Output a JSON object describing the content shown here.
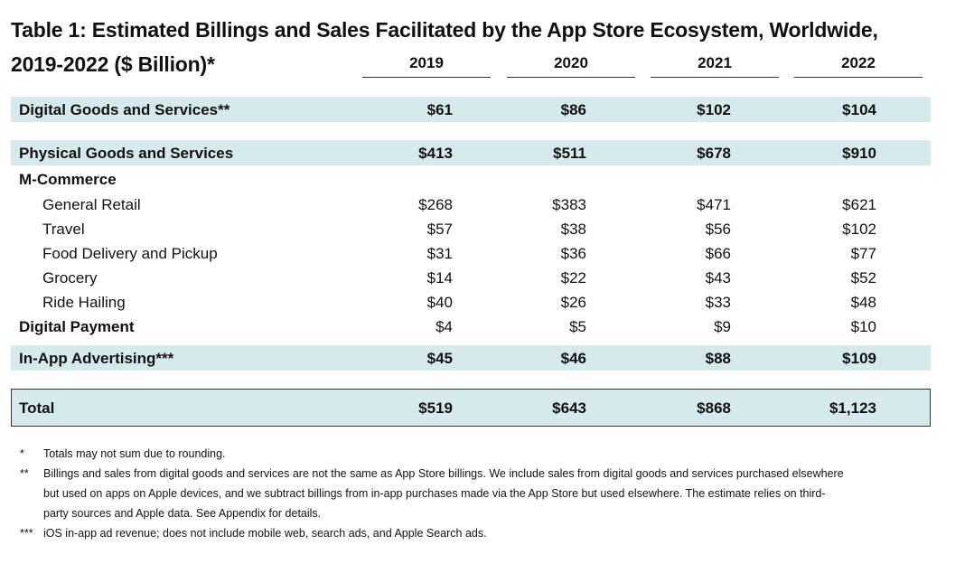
{
  "title": {
    "line1": "Table 1: Estimated Billings and Sales Facilitated by the App Store Ecosystem, Worldwide,",
    "line2": "2019-2022 ($ Billion)*"
  },
  "years": [
    "2019",
    "2020",
    "2021",
    "2022"
  ],
  "rows": [
    {
      "label": "Digital Goods and Services**",
      "values": [
        "$61",
        "$86",
        "$102",
        "$104"
      ]
    },
    {
      "label": "Physical Goods and Services",
      "values": [
        "$413",
        "$511",
        "$678",
        "$910"
      ]
    },
    {
      "label": "M-Commerce",
      "values": [
        "",
        "",
        "",
        ""
      ]
    },
    {
      "label": "General Retail",
      "values": [
        "$268",
        "$383",
        "$471",
        "$621"
      ]
    },
    {
      "label": "Travel",
      "values": [
        "$57",
        "$38",
        "$56",
        "$102"
      ]
    },
    {
      "label": "Food Delivery and Pickup",
      "values": [
        "$31",
        "$36",
        "$66",
        "$77"
      ]
    },
    {
      "label": "Grocery",
      "values": [
        "$14",
        "$22",
        "$43",
        "$52"
      ]
    },
    {
      "label": "Ride Hailing",
      "values": [
        "$40",
        "$26",
        "$33",
        "$48"
      ]
    },
    {
      "label": "Digital Payment",
      "values": [
        "$4",
        "$5",
        "$9",
        "$10"
      ]
    },
    {
      "label": "In-App Advertising***",
      "values": [
        "$45",
        "$46",
        "$88",
        "$109"
      ]
    },
    {
      "label": "Total",
      "values": [
        "$519",
        "$643",
        "$868",
        "$1,123"
      ]
    }
  ],
  "footnotes": [
    {
      "mark": "*",
      "lines": [
        "Totals may not sum due to rounding."
      ]
    },
    {
      "mark": "**",
      "lines": [
        "Billings and sales from digital goods and services are not the same as App Store billings. We include sales from digital goods and services purchased elsewhere",
        "but used on apps on Apple devices, and we subtract billings from in-app purchases made via the App Store but used elsewhere. The estimate relies on third-",
        "party sources and Apple data. See Appendix for details."
      ]
    },
    {
      "mark": "***",
      "lines": [
        "iOS in-app ad revenue; does not include mobile web, search ads, and Apple Search ads."
      ]
    }
  ]
}
